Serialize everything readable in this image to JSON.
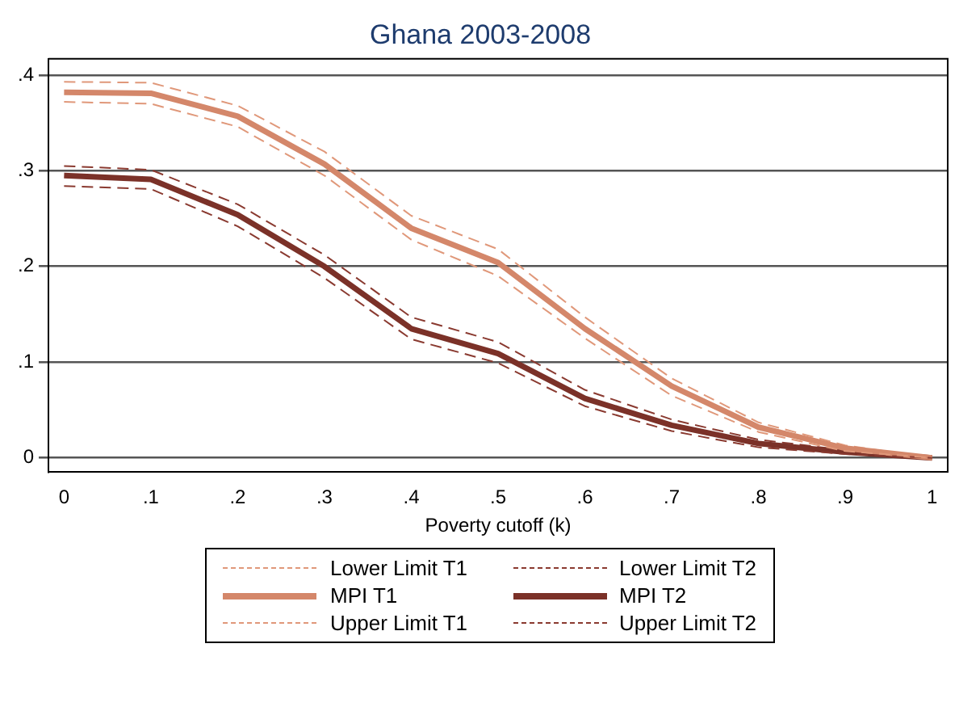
{
  "chart_data": {
    "type": "line",
    "title": "Ghana 2003-2008",
    "xlabel": "Poverty cutoff (k)",
    "x": [
      0,
      0.1,
      0.2,
      0.3,
      0.4,
      0.5,
      0.6,
      0.7,
      0.8,
      0.9,
      1
    ],
    "xlim": [
      -0.018,
      1.018
    ],
    "xticks": [
      0,
      {
        "value": 0.1,
        "label": ".1"
      },
      {
        "value": 0.2,
        "label": ".2"
      },
      {
        "value": 0.3,
        "label": ".3"
      },
      {
        "value": 0.4,
        "label": ".4"
      },
      {
        "value": 0.5,
        "label": ".5"
      },
      {
        "value": 0.6,
        "label": ".6"
      },
      {
        "value": 0.7,
        "label": ".7"
      },
      {
        "value": 0.8,
        "label": ".8"
      },
      {
        "value": 0.9,
        "label": ".9"
      },
      1
    ],
    "ylim": [
      -0.015,
      0.417
    ],
    "yticks": [
      0,
      {
        "value": 0.1,
        "label": ".1"
      },
      {
        "value": 0.2,
        "label": ".2"
      },
      {
        "value": 0.3,
        "label": ".3"
      },
      {
        "value": 0.4,
        "label": ".4"
      }
    ],
    "grid": "y",
    "legend": "bottom",
    "marker": "none",
    "series": [
      {
        "name": "Lower Limit T1",
        "color": "#e0987a",
        "line_style": "dashed",
        "values": [
          0.372,
          0.37,
          0.346,
          0.295,
          0.228,
          0.19,
          0.125,
          0.065,
          0.027,
          0.007,
          0
        ]
      },
      {
        "name": "Lower Limit T2",
        "color": "#8a3a30",
        "line_style": "dashed",
        "values": [
          0.284,
          0.281,
          0.242,
          0.188,
          0.124,
          0.099,
          0.054,
          0.028,
          0.011,
          0.004,
          0
        ]
      },
      {
        "name": "MPI T1",
        "color": "#d4876a",
        "line_style": "solid",
        "values": [
          0.382,
          0.381,
          0.357,
          0.307,
          0.24,
          0.204,
          0.135,
          0.075,
          0.032,
          0.01,
          0
        ]
      },
      {
        "name": "MPI T2",
        "color": "#7b3128",
        "line_style": "solid",
        "values": [
          0.295,
          0.291,
          0.254,
          0.2,
          0.135,
          0.109,
          0.062,
          0.034,
          0.015,
          0.006,
          0
        ]
      },
      {
        "name": "Upper Limit T1",
        "color": "#e0987a",
        "line_style": "dashed",
        "values": [
          0.393,
          0.392,
          0.368,
          0.32,
          0.253,
          0.218,
          0.147,
          0.083,
          0.037,
          0.013,
          0
        ]
      },
      {
        "name": "Upper Limit T2",
        "color": "#8a3a30",
        "line_style": "dashed",
        "values": [
          0.305,
          0.301,
          0.265,
          0.212,
          0.147,
          0.121,
          0.071,
          0.04,
          0.019,
          0.008,
          0
        ]
      }
    ]
  }
}
